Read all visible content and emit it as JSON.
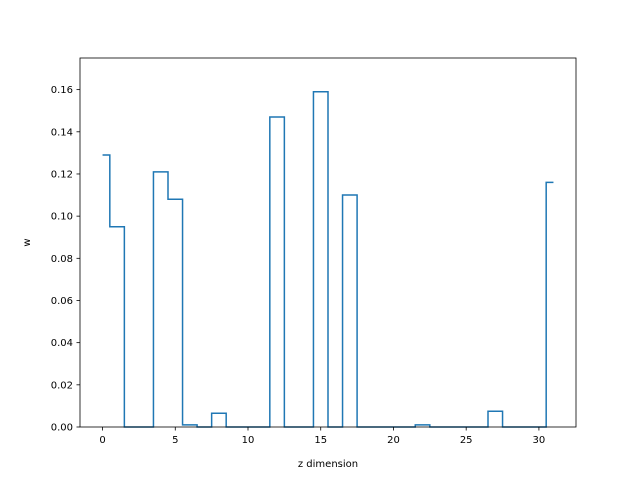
{
  "chart_data": {
    "type": "line",
    "drawstyle": "steps-mid",
    "title": "",
    "xlabel": "z dimension",
    "ylabel": "w",
    "xlim": [
      -1.55,
      32.55
    ],
    "ylim": [
      0.0,
      0.175
    ],
    "grid": false,
    "xticks": [
      0,
      5,
      10,
      15,
      20,
      25,
      30
    ],
    "xtick_labels": [
      "0",
      "5",
      "10",
      "15",
      "20",
      "25",
      "30"
    ],
    "yticks": [
      0.0,
      0.02,
      0.04,
      0.06,
      0.08,
      0.1,
      0.12,
      0.14,
      0.16
    ],
    "ytick_labels": [
      "0.00",
      "0.02",
      "0.04",
      "0.06",
      "0.08",
      "0.10",
      "0.12",
      "0.14",
      "0.16"
    ],
    "line_color": "#1f77b4",
    "x": [
      0,
      1,
      2,
      3,
      4,
      5,
      6,
      7,
      8,
      9,
      10,
      11,
      12,
      13,
      14,
      15,
      16,
      17,
      18,
      19,
      20,
      21,
      22,
      23,
      24,
      25,
      26,
      27,
      28,
      29,
      30,
      31
    ],
    "y": [
      0.129,
      0.095,
      0.0,
      0.0,
      0.121,
      0.108,
      0.001,
      0.0,
      0.0065,
      0.0,
      0.0,
      0.0,
      0.147,
      0.0,
      0.0,
      0.159,
      0.0,
      0.11,
      0.0,
      0.0,
      0.0,
      0.0,
      0.001,
      0.0,
      0.0,
      0.0,
      0.0,
      0.0075,
      0.0,
      0.0,
      0.0,
      0.116
    ]
  }
}
